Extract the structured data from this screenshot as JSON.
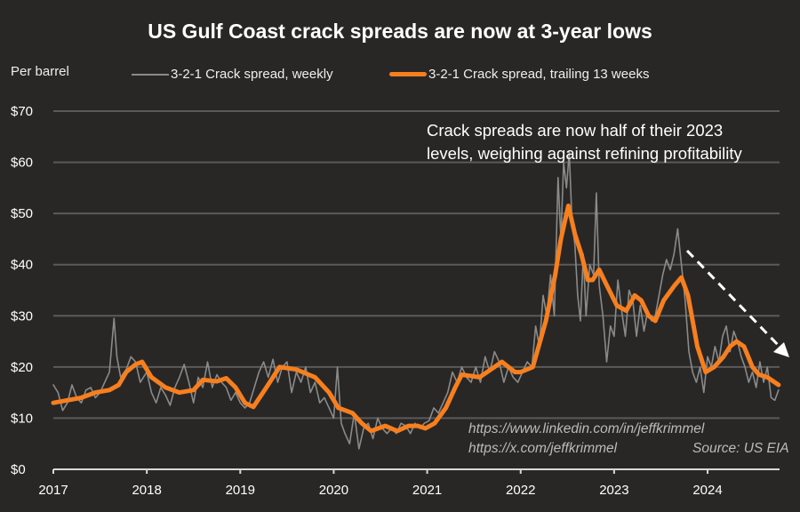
{
  "chart_data": {
    "type": "line",
    "title": "US Gulf Coast crack spreads are now at 3-year lows",
    "ylabel": "Per barrel",
    "xlabel": "",
    "ylim": [
      0,
      70
    ],
    "xlim": [
      2017,
      2024.77
    ],
    "yticks": [
      0,
      10,
      20,
      30,
      40,
      50,
      60,
      70
    ],
    "ytick_labels": [
      "$0",
      "$10",
      "$20",
      "$30",
      "$40",
      "$50",
      "$60",
      "$70"
    ],
    "xticks": [
      2017,
      2018,
      2019,
      2020,
      2021,
      2022,
      2023,
      2024
    ],
    "xtick_labels": [
      "2017",
      "2018",
      "2019",
      "2020",
      "2021",
      "2022",
      "2023",
      "2024"
    ],
    "grid": true,
    "legend_position": "top",
    "annotation": [
      "Crack spreads are now half of their 2023",
      "levels, weighing against refining profitability"
    ],
    "credits": [
      "https://www.linkedin.com/in/jeffkrimmel",
      "https://x.com/jeffkrimmel",
      "Source: US EIA"
    ],
    "series": [
      {
        "name": "3-2-1 Crack spread, weekly",
        "color": "#8a8a8a",
        "points": [
          [
            2017.0,
            16.5
          ],
          [
            2017.05,
            15
          ],
          [
            2017.1,
            11.5
          ],
          [
            2017.15,
            13
          ],
          [
            2017.2,
            16.5
          ],
          [
            2017.25,
            14
          ],
          [
            2017.3,
            13
          ],
          [
            2017.35,
            15.5
          ],
          [
            2017.4,
            16
          ],
          [
            2017.45,
            14
          ],
          [
            2017.5,
            15
          ],
          [
            2017.55,
            17
          ],
          [
            2017.6,
            19
          ],
          [
            2017.65,
            29.5
          ],
          [
            2017.68,
            22
          ],
          [
            2017.72,
            18
          ],
          [
            2017.78,
            19.5
          ],
          [
            2017.83,
            22
          ],
          [
            2017.88,
            21
          ],
          [
            2017.93,
            17
          ],
          [
            2018.0,
            19
          ],
          [
            2018.05,
            15
          ],
          [
            2018.1,
            13
          ],
          [
            2018.15,
            16
          ],
          [
            2018.2,
            14.5
          ],
          [
            2018.25,
            12.5
          ],
          [
            2018.3,
            16
          ],
          [
            2018.35,
            18
          ],
          [
            2018.4,
            20.5
          ],
          [
            2018.45,
            17
          ],
          [
            2018.5,
            13
          ],
          [
            2018.55,
            18
          ],
          [
            2018.6,
            16
          ],
          [
            2018.65,
            21
          ],
          [
            2018.7,
            16
          ],
          [
            2018.75,
            18.5
          ],
          [
            2018.8,
            17
          ],
          [
            2018.85,
            16
          ],
          [
            2018.9,
            13.5
          ],
          [
            2018.95,
            15
          ],
          [
            2019.0,
            13
          ],
          [
            2019.05,
            12
          ],
          [
            2019.1,
            13
          ],
          [
            2019.15,
            16
          ],
          [
            2019.2,
            19
          ],
          [
            2019.25,
            21
          ],
          [
            2019.3,
            18
          ],
          [
            2019.35,
            21.5
          ],
          [
            2019.4,
            17
          ],
          [
            2019.45,
            20
          ],
          [
            2019.5,
            21
          ],
          [
            2019.55,
            15
          ],
          [
            2019.6,
            19
          ],
          [
            2019.65,
            17
          ],
          [
            2019.7,
            20
          ],
          [
            2019.75,
            15
          ],
          [
            2019.8,
            17
          ],
          [
            2019.85,
            13
          ],
          [
            2019.9,
            14
          ],
          [
            2019.95,
            12
          ],
          [
            2020.0,
            10
          ],
          [
            2020.04,
            20
          ],
          [
            2020.08,
            9
          ],
          [
            2020.12,
            7
          ],
          [
            2020.17,
            5
          ],
          [
            2020.22,
            11
          ],
          [
            2020.27,
            4
          ],
          [
            2020.32,
            8
          ],
          [
            2020.37,
            9
          ],
          [
            2020.42,
            6
          ],
          [
            2020.47,
            10
          ],
          [
            2020.52,
            8
          ],
          [
            2020.57,
            7
          ],
          [
            2020.62,
            8
          ],
          [
            2020.67,
            7
          ],
          [
            2020.72,
            9
          ],
          [
            2020.77,
            8.5
          ],
          [
            2020.82,
            7
          ],
          [
            2020.87,
            9
          ],
          [
            2020.92,
            8
          ],
          [
            2020.97,
            9
          ],
          [
            2021.02,
            9.5
          ],
          [
            2021.07,
            12
          ],
          [
            2021.12,
            11
          ],
          [
            2021.17,
            13
          ],
          [
            2021.22,
            15
          ],
          [
            2021.27,
            19
          ],
          [
            2021.32,
            17
          ],
          [
            2021.37,
            20
          ],
          [
            2021.42,
            18
          ],
          [
            2021.47,
            17
          ],
          [
            2021.52,
            20
          ],
          [
            2021.57,
            17
          ],
          [
            2021.62,
            22
          ],
          [
            2021.67,
            19
          ],
          [
            2021.72,
            23
          ],
          [
            2021.77,
            21
          ],
          [
            2021.82,
            17
          ],
          [
            2021.87,
            20
          ],
          [
            2021.92,
            18
          ],
          [
            2021.97,
            17
          ],
          [
            2022.02,
            19
          ],
          [
            2022.07,
            21
          ],
          [
            2022.12,
            20
          ],
          [
            2022.16,
            28
          ],
          [
            2022.2,
            24
          ],
          [
            2022.24,
            34
          ],
          [
            2022.28,
            30
          ],
          [
            2022.32,
            38
          ],
          [
            2022.36,
            30
          ],
          [
            2022.4,
            57
          ],
          [
            2022.43,
            45
          ],
          [
            2022.46,
            60
          ],
          [
            2022.49,
            55
          ],
          [
            2022.52,
            62
          ],
          [
            2022.55,
            48
          ],
          [
            2022.58,
            44
          ],
          [
            2022.61,
            34
          ],
          [
            2022.64,
            29
          ],
          [
            2022.67,
            42
          ],
          [
            2022.7,
            30
          ],
          [
            2022.74,
            40
          ],
          [
            2022.78,
            38
          ],
          [
            2022.81,
            54
          ],
          [
            2022.84,
            36
          ],
          [
            2022.88,
            30
          ],
          [
            2022.92,
            21
          ],
          [
            2022.96,
            28
          ],
          [
            2023.0,
            26
          ],
          [
            2023.04,
            37
          ],
          [
            2023.08,
            31
          ],
          [
            2023.12,
            26
          ],
          [
            2023.16,
            35
          ],
          [
            2023.2,
            33
          ],
          [
            2023.24,
            26
          ],
          [
            2023.28,
            32
          ],
          [
            2023.32,
            27
          ],
          [
            2023.36,
            31
          ],
          [
            2023.4,
            29
          ],
          [
            2023.44,
            30
          ],
          [
            2023.48,
            34
          ],
          [
            2023.52,
            38
          ],
          [
            2023.56,
            41
          ],
          [
            2023.6,
            39
          ],
          [
            2023.64,
            42
          ],
          [
            2023.68,
            47
          ],
          [
            2023.72,
            40
          ],
          [
            2023.76,
            33
          ],
          [
            2023.8,
            23
          ],
          [
            2023.84,
            19
          ],
          [
            2023.88,
            17
          ],
          [
            2023.92,
            20
          ],
          [
            2023.96,
            15
          ],
          [
            2024.0,
            22
          ],
          [
            2024.04,
            20
          ],
          [
            2024.08,
            24
          ],
          [
            2024.12,
            21
          ],
          [
            2024.16,
            26
          ],
          [
            2024.2,
            28
          ],
          [
            2024.24,
            23
          ],
          [
            2024.28,
            27
          ],
          [
            2024.32,
            25
          ],
          [
            2024.36,
            22
          ],
          [
            2024.4,
            20
          ],
          [
            2024.44,
            17
          ],
          [
            2024.48,
            19
          ],
          [
            2024.52,
            16
          ],
          [
            2024.56,
            21
          ],
          [
            2024.6,
            17
          ],
          [
            2024.64,
            20
          ],
          [
            2024.68,
            14
          ],
          [
            2024.72,
            13.5
          ],
          [
            2024.76,
            15.5
          ]
        ]
      },
      {
        "name": "3-2-1 Crack spread, trailing 13 weeks",
        "color": "#f77f1e",
        "points": [
          [
            2017.0,
            13
          ],
          [
            2017.15,
            13.5
          ],
          [
            2017.3,
            14
          ],
          [
            2017.45,
            15
          ],
          [
            2017.6,
            15.5
          ],
          [
            2017.7,
            16.5
          ],
          [
            2017.78,
            19
          ],
          [
            2017.88,
            20.5
          ],
          [
            2017.95,
            21
          ],
          [
            2018.05,
            18
          ],
          [
            2018.2,
            16
          ],
          [
            2018.35,
            15
          ],
          [
            2018.5,
            15.5
          ],
          [
            2018.6,
            17.5
          ],
          [
            2018.75,
            17.2
          ],
          [
            2018.85,
            17.8
          ],
          [
            2018.95,
            16
          ],
          [
            2019.05,
            13
          ],
          [
            2019.14,
            12.2
          ],
          [
            2019.28,
            16
          ],
          [
            2019.42,
            20
          ],
          [
            2019.6,
            19.5
          ],
          [
            2019.8,
            18
          ],
          [
            2019.95,
            15
          ],
          [
            2020.05,
            12
          ],
          [
            2020.2,
            11
          ],
          [
            2020.3,
            9
          ],
          [
            2020.4,
            7.5
          ],
          [
            2020.55,
            8.5
          ],
          [
            2020.68,
            7.5
          ],
          [
            2020.8,
            8.5
          ],
          [
            2020.9,
            8.5
          ],
          [
            2020.98,
            8
          ],
          [
            2021.08,
            9
          ],
          [
            2021.2,
            12
          ],
          [
            2021.3,
            16
          ],
          [
            2021.37,
            18.5
          ],
          [
            2021.56,
            18
          ],
          [
            2021.8,
            21
          ],
          [
            2021.94,
            19
          ],
          [
            2022.0,
            19
          ],
          [
            2022.13,
            20
          ],
          [
            2022.27,
            29
          ],
          [
            2022.37,
            38
          ],
          [
            2022.43,
            45
          ],
          [
            2022.51,
            51.5
          ],
          [
            2022.58,
            46
          ],
          [
            2022.65,
            42
          ],
          [
            2022.72,
            37
          ],
          [
            2022.77,
            37
          ],
          [
            2022.84,
            39
          ],
          [
            2022.92,
            36
          ],
          [
            2023.03,
            32
          ],
          [
            2023.13,
            31
          ],
          [
            2023.22,
            34
          ],
          [
            2023.29,
            33
          ],
          [
            2023.37,
            30
          ],
          [
            2023.44,
            29
          ],
          [
            2023.53,
            33
          ],
          [
            2023.65,
            36
          ],
          [
            2023.72,
            37.5
          ],
          [
            2023.79,
            34
          ],
          [
            2023.89,
            24
          ],
          [
            2023.98,
            19
          ],
          [
            2024.07,
            20
          ],
          [
            2024.17,
            22
          ],
          [
            2024.24,
            24
          ],
          [
            2024.31,
            25
          ],
          [
            2024.39,
            24
          ],
          [
            2024.48,
            20
          ],
          [
            2024.55,
            18.5
          ],
          [
            2024.64,
            18
          ],
          [
            2024.76,
            16.5
          ]
        ]
      }
    ]
  }
}
